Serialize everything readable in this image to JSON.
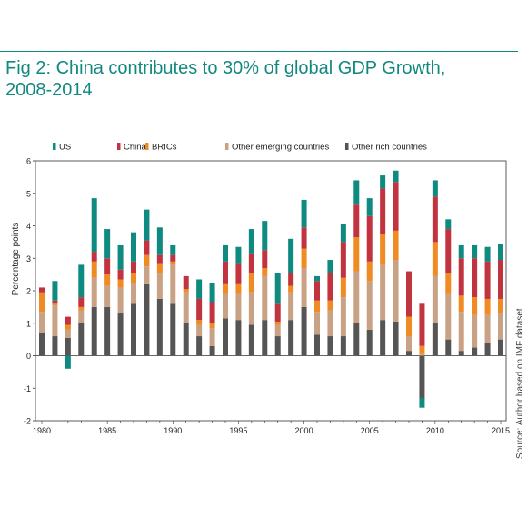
{
  "figure": {
    "title_line1": "Fig 2: China contributes to 30% of global GDP Growth,",
    "title_line2": "2008-2014",
    "source": "Source: Author based on IMF dataset"
  },
  "colors": {
    "rule": "#0f8a83",
    "title": "#12897f"
  },
  "chart_data": {
    "type": "bar",
    "stacked": true,
    "title": "",
    "xlabel": "",
    "ylabel": "Percentage points",
    "ylim": [
      -2,
      6
    ],
    "yticks": [
      "-2",
      "-1",
      "0",
      "1",
      "2",
      "3",
      "4",
      "5",
      "6"
    ],
    "xlim": [
      1980,
      2015
    ],
    "xticks": [
      "1980",
      "1985",
      "1990",
      "1995",
      "2000",
      "2005",
      "2010",
      "2015"
    ],
    "grid": false,
    "legend_position": "top",
    "categories": [
      1980,
      1981,
      1982,
      1983,
      1984,
      1985,
      1986,
      1987,
      1988,
      1989,
      1990,
      1991,
      1992,
      1993,
      1994,
      1995,
      1996,
      1997,
      1998,
      1999,
      2000,
      2001,
      2002,
      2003,
      2004,
      2005,
      2006,
      2007,
      2008,
      2009,
      2010,
      2011,
      2012,
      2013,
      2014,
      2015
    ],
    "series": [
      {
        "name": "Other rich countries",
        "color": "#555555",
        "values": [
          0.7,
          0.6,
          0.55,
          1.0,
          1.5,
          1.5,
          1.3,
          1.6,
          2.2,
          1.75,
          1.6,
          1.0,
          0.6,
          0.3,
          1.15,
          1.1,
          0.95,
          1.1,
          0.6,
          1.1,
          1.5,
          0.65,
          0.6,
          0.6,
          1.0,
          0.8,
          1.1,
          1.05,
          0.15,
          -1.3,
          1.0,
          0.5,
          0.15,
          0.25,
          0.4,
          0.5
        ]
      },
      {
        "name": "Other emerging countries",
        "color": "#c9a184",
        "values": [
          0.65,
          0.95,
          0.25,
          0.4,
          0.9,
          0.65,
          0.8,
          0.65,
          0.55,
          0.8,
          1.2,
          0.95,
          0.35,
          0.55,
          0.75,
          0.8,
          1.0,
          1.35,
          0.35,
          0.85,
          1.2,
          0.7,
          0.8,
          1.2,
          1.6,
          1.5,
          1.7,
          1.9,
          0.45,
          0.05,
          1.45,
          1.4,
          1.2,
          1.0,
          0.85,
          0.8
        ]
      },
      {
        "name": "BRICs",
        "color": "#f08a22",
        "values": [
          0.6,
          0.05,
          0.15,
          0.1,
          0.5,
          0.35,
          0.25,
          0.3,
          0.35,
          0.3,
          0.1,
          0.1,
          0.15,
          0.15,
          0.3,
          0.3,
          0.6,
          0.25,
          0.1,
          0.2,
          0.6,
          0.35,
          0.3,
          0.6,
          1.05,
          0.6,
          0.95,
          0.9,
          0.6,
          0.25,
          1.05,
          0.65,
          0.5,
          0.55,
          0.5,
          0.45
        ]
      },
      {
        "name": "China",
        "color": "#c1333e",
        "values": [
          0.15,
          0.1,
          0.25,
          0.3,
          0.3,
          0.5,
          0.3,
          0.35,
          0.45,
          0.25,
          0.2,
          0.4,
          0.65,
          0.65,
          0.7,
          0.65,
          0.6,
          0.55,
          0.55,
          0.4,
          0.65,
          0.6,
          0.85,
          1.1,
          1.0,
          1.4,
          1.4,
          1.5,
          1.4,
          1.3,
          1.4,
          1.35,
          1.15,
          1.2,
          1.15,
          1.2
        ]
      },
      {
        "name": "US",
        "color": "#0e8a80",
        "values": [
          0,
          0.6,
          -0.4,
          1.0,
          1.65,
          0.9,
          0.75,
          0.9,
          0.95,
          0.85,
          0.3,
          0,
          0.6,
          0.6,
          0.5,
          0.5,
          0.75,
          0.9,
          0.95,
          1.05,
          0.85,
          0.15,
          0.4,
          0.55,
          0.75,
          0.55,
          0.4,
          0.35,
          0,
          -0.3,
          0.5,
          0.3,
          0.4,
          0.4,
          0.45,
          0.5
        ]
      }
    ],
    "legend_order": [
      "US",
      "China",
      "BRICs",
      "Other emerging countries",
      "Other rich countries"
    ]
  }
}
